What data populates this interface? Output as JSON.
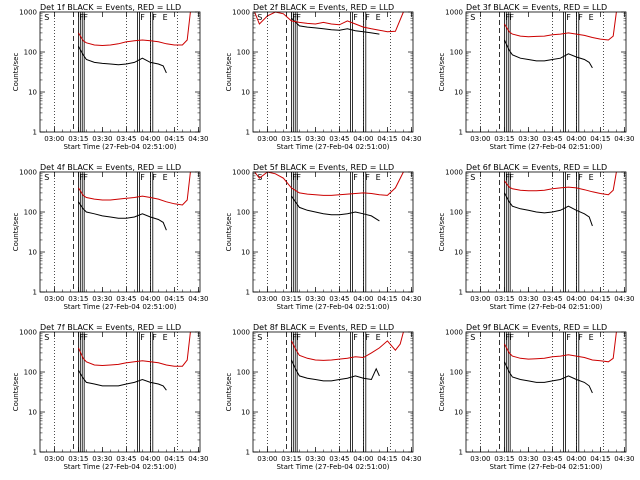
{
  "figure": {
    "ylabel": "Counts/sec",
    "xlabel": "Start Time (27-Feb-04 02:51:00)",
    "x_ticks": [
      "03:00",
      "03:15",
      "03:30",
      "03:45",
      "04:00",
      "04:15",
      "04:30"
    ],
    "y_ticks": [
      "1",
      "10",
      "100",
      "1000"
    ],
    "marker_labels": {
      "S": "S",
      "F": "F",
      "E": "E"
    },
    "colors": {
      "events": "#000000",
      "lld": "#cc0000"
    }
  },
  "chart_data": [
    {
      "type": "line",
      "title": "Det 1f BLACK = Events, RED = LLD",
      "xlabel": "Start Time (27-Feb-04 02:51:00)",
      "ylabel": "Counts/sec",
      "ylog": true,
      "ylim": [
        1,
        1000
      ],
      "series": [
        {
          "name": "Events",
          "color": "#000000",
          "x": [
            "03:15",
            "03:18",
            "03:20",
            "03:25",
            "03:30",
            "03:35",
            "03:40",
            "03:45",
            "03:50",
            "03:55",
            "04:00",
            "04:05",
            "04:08",
            "04:10"
          ],
          "y": [
            140,
            85,
            65,
            55,
            52,
            50,
            48,
            50,
            55,
            70,
            55,
            50,
            45,
            30
          ]
        },
        {
          "name": "LLD",
          "color": "#cc0000",
          "x": [
            "03:15",
            "03:18",
            "03:20",
            "03:25",
            "03:30",
            "03:35",
            "03:40",
            "03:45",
            "03:50",
            "03:55",
            "04:00",
            "04:05",
            "04:10",
            "04:15",
            "04:20",
            "04:23",
            "04:25"
          ],
          "y": [
            300,
            190,
            170,
            150,
            145,
            150,
            160,
            180,
            190,
            200,
            190,
            180,
            160,
            150,
            150,
            200,
            1000
          ]
        }
      ]
    },
    {
      "type": "line",
      "title": "Det 2f BLACK = Events, RED = LLD",
      "xlabel": "Start Time (27-Feb-04 02:51:00)",
      "ylabel": "Counts/sec",
      "ylog": true,
      "ylim": [
        1,
        1000
      ],
      "series": [
        {
          "name": "Events",
          "color": "#000000",
          "x": [
            "03:15",
            "03:20",
            "03:25",
            "03:30",
            "03:35",
            "03:40",
            "03:45",
            "03:50",
            "03:55",
            "04:00",
            "04:05",
            "04:10"
          ],
          "y": [
            700,
            450,
            420,
            400,
            380,
            360,
            350,
            380,
            340,
            320,
            300,
            280
          ]
        },
        {
          "name": "LLD",
          "color": "#cc0000",
          "x": [
            "02:52",
            "02:55",
            "03:00",
            "03:05",
            "03:10",
            "03:15",
            "03:20",
            "03:25",
            "03:30",
            "03:35",
            "03:40",
            "03:45",
            "03:50",
            "03:55",
            "04:00",
            "04:05",
            "04:10",
            "04:15",
            "04:20",
            "04:25"
          ],
          "y": [
            1000,
            500,
            800,
            1000,
            900,
            600,
            550,
            520,
            500,
            550,
            500,
            480,
            600,
            500,
            420,
            380,
            350,
            320,
            330,
            1000
          ]
        }
      ]
    },
    {
      "type": "line",
      "title": "Det 3f BLACK = Events, RED = LLD",
      "xlabel": "Start Time (27-Feb-04 02:51:00)",
      "ylabel": "Counts/sec",
      "ylog": true,
      "ylim": [
        1,
        1000
      ],
      "series": [
        {
          "name": "Events",
          "color": "#000000",
          "x": [
            "03:15",
            "03:18",
            "03:20",
            "03:25",
            "03:30",
            "03:35",
            "03:40",
            "03:45",
            "03:50",
            "03:55",
            "04:00",
            "04:05",
            "04:08",
            "04:10"
          ],
          "y": [
            200,
            110,
            85,
            70,
            65,
            60,
            60,
            65,
            70,
            90,
            75,
            65,
            55,
            40
          ]
        },
        {
          "name": "LLD",
          "color": "#cc0000",
          "x": [
            "03:15",
            "03:18",
            "03:20",
            "03:25",
            "03:30",
            "03:35",
            "03:40",
            "03:45",
            "03:50",
            "03:55",
            "04:00",
            "04:05",
            "04:10",
            "04:15",
            "04:20",
            "04:23",
            "04:25"
          ],
          "y": [
            500,
            320,
            280,
            250,
            240,
            245,
            250,
            270,
            280,
            300,
            280,
            260,
            230,
            210,
            200,
            250,
            1000
          ]
        }
      ]
    },
    {
      "type": "line",
      "title": "Det 4f BLACK = Events, RED = LLD",
      "xlabel": "Start Time (27-Feb-04 02:51:00)",
      "ylabel": "Counts/sec",
      "ylog": true,
      "ylim": [
        1,
        1000
      ],
      "series": [
        {
          "name": "Events",
          "color": "#000000",
          "x": [
            "03:15",
            "03:18",
            "03:20",
            "03:25",
            "03:30",
            "03:35",
            "03:40",
            "03:45",
            "03:50",
            "03:55",
            "04:00",
            "04:05",
            "04:08",
            "04:10"
          ],
          "y": [
            180,
            120,
            100,
            90,
            80,
            75,
            70,
            70,
            75,
            90,
            75,
            65,
            55,
            35
          ]
        },
        {
          "name": "LLD",
          "color": "#cc0000",
          "x": [
            "03:15",
            "03:18",
            "03:20",
            "03:25",
            "03:30",
            "03:35",
            "03:40",
            "03:45",
            "03:50",
            "03:55",
            "04:00",
            "04:05",
            "04:10",
            "04:15",
            "04:20",
            "04:23",
            "04:25"
          ],
          "y": [
            400,
            260,
            230,
            210,
            200,
            200,
            210,
            220,
            230,
            250,
            230,
            210,
            180,
            160,
            150,
            200,
            1000
          ]
        }
      ]
    },
    {
      "type": "line",
      "title": "Det 5f BLACK = Events, RED = LLD",
      "xlabel": "Start Time (27-Feb-04 02:51:00)",
      "ylabel": "Counts/sec",
      "ylog": true,
      "ylim": [
        1,
        1000
      ],
      "series": [
        {
          "name": "Events",
          "color": "#000000",
          "x": [
            "03:15",
            "03:20",
            "03:25",
            "03:30",
            "03:35",
            "03:40",
            "03:45",
            "03:50",
            "03:55",
            "04:00",
            "04:05",
            "04:10"
          ],
          "y": [
            250,
            130,
            110,
            100,
            90,
            85,
            85,
            90,
            100,
            90,
            80,
            60
          ]
        },
        {
          "name": "LLD",
          "color": "#cc0000",
          "x": [
            "02:52",
            "02:55",
            "03:00",
            "03:05",
            "03:10",
            "03:15",
            "03:20",
            "03:25",
            "03:30",
            "03:35",
            "03:40",
            "03:45",
            "03:50",
            "03:55",
            "04:00",
            "04:05",
            "04:10",
            "04:15",
            "04:20",
            "04:25"
          ],
          "y": [
            1000,
            700,
            1000,
            900,
            700,
            400,
            300,
            280,
            270,
            260,
            260,
            270,
            280,
            290,
            300,
            290,
            270,
            260,
            400,
            1000
          ]
        }
      ]
    },
    {
      "type": "line",
      "title": "Det 6f BLACK = Events, RED = LLD",
      "xlabel": "Start Time (27-Feb-04 02:51:00)",
      "ylabel": "Counts/sec",
      "ylog": true,
      "ylim": [
        1,
        1000
      ],
      "series": [
        {
          "name": "Events",
          "color": "#000000",
          "x": [
            "03:15",
            "03:18",
            "03:20",
            "03:25",
            "03:30",
            "03:35",
            "03:40",
            "03:45",
            "03:50",
            "03:55",
            "04:00",
            "04:05",
            "04:08",
            "04:10"
          ],
          "y": [
            300,
            180,
            140,
            120,
            110,
            100,
            95,
            100,
            110,
            140,
            110,
            90,
            75,
            45
          ]
        },
        {
          "name": "LLD",
          "color": "#cc0000",
          "x": [
            "03:15",
            "03:18",
            "03:20",
            "03:25",
            "03:30",
            "03:35",
            "03:40",
            "03:45",
            "03:50",
            "03:55",
            "04:00",
            "04:05",
            "04:10",
            "04:15",
            "04:20",
            "04:23",
            "04:25"
          ],
          "y": [
            600,
            420,
            380,
            350,
            340,
            340,
            350,
            380,
            400,
            420,
            400,
            360,
            320,
            290,
            270,
            350,
            1000
          ]
        }
      ]
    },
    {
      "type": "line",
      "title": "Det 7f BLACK = Events, RED = LLD",
      "xlabel": "Start Time (27-Feb-04 02:51:00)",
      "ylabel": "Counts/sec",
      "ylog": true,
      "ylim": [
        1,
        1000
      ],
      "series": [
        {
          "name": "Events",
          "color": "#000000",
          "x": [
            "03:15",
            "03:18",
            "03:20",
            "03:25",
            "03:30",
            "03:35",
            "03:40",
            "03:45",
            "03:50",
            "03:55",
            "04:00",
            "04:05",
            "04:08",
            "04:10"
          ],
          "y": [
            110,
            70,
            55,
            50,
            45,
            45,
            45,
            50,
            55,
            65,
            55,
            50,
            45,
            35
          ]
        },
        {
          "name": "LLD",
          "color": "#cc0000",
          "x": [
            "03:15",
            "03:18",
            "03:20",
            "03:25",
            "03:30",
            "03:35",
            "03:40",
            "03:45",
            "03:50",
            "03:55",
            "04:00",
            "04:05",
            "04:10",
            "04:15",
            "04:20",
            "04:23",
            "04:25"
          ],
          "y": [
            400,
            220,
            180,
            150,
            145,
            150,
            155,
            170,
            180,
            190,
            180,
            170,
            150,
            140,
            140,
            200,
            1000
          ]
        }
      ]
    },
    {
      "type": "line",
      "title": "Det 8f BLACK = Events, RED = LLD",
      "xlabel": "Start Time (27-Feb-04 02:51:00)",
      "ylabel": "Counts/sec",
      "ylog": true,
      "ylim": [
        1,
        1000
      ],
      "series": [
        {
          "name": "Events",
          "color": "#000000",
          "x": [
            "03:15",
            "03:18",
            "03:20",
            "03:25",
            "03:30",
            "03:35",
            "03:40",
            "03:45",
            "03:50",
            "03:55",
            "04:00",
            "04:05",
            "04:08",
            "04:10"
          ],
          "y": [
            200,
            110,
            80,
            70,
            65,
            60,
            60,
            65,
            70,
            80,
            70,
            65,
            120,
            80
          ]
        },
        {
          "name": "LLD",
          "color": "#cc0000",
          "x": [
            "03:15",
            "03:18",
            "03:20",
            "03:25",
            "03:30",
            "03:35",
            "03:40",
            "03:45",
            "03:50",
            "03:55",
            "04:00",
            "04:05",
            "04:10",
            "04:15",
            "04:20",
            "04:23",
            "04:25"
          ],
          "y": [
            600,
            350,
            260,
            220,
            200,
            195,
            200,
            210,
            220,
            240,
            230,
            300,
            400,
            600,
            350,
            500,
            1000
          ]
        }
      ]
    },
    {
      "type": "line",
      "title": "Det 9f BLACK = Events, RED = LLD",
      "xlabel": "Start Time (27-Feb-04 02:51:00)",
      "ylabel": "Counts/sec",
      "ylog": true,
      "ylim": [
        1,
        1000
      ],
      "series": [
        {
          "name": "Events",
          "color": "#000000",
          "x": [
            "03:15",
            "03:18",
            "03:20",
            "03:25",
            "03:30",
            "03:35",
            "03:40",
            "03:45",
            "03:50",
            "03:55",
            "04:00",
            "04:05",
            "04:08",
            "04:10"
          ],
          "y": [
            180,
            100,
            75,
            65,
            60,
            55,
            55,
            60,
            65,
            80,
            65,
            55,
            45,
            30
          ]
        },
        {
          "name": "LLD",
          "color": "#cc0000",
          "x": [
            "03:15",
            "03:18",
            "03:20",
            "03:25",
            "03:30",
            "03:35",
            "03:40",
            "03:45",
            "03:50",
            "03:55",
            "04:00",
            "04:05",
            "04:10",
            "04:15",
            "04:20",
            "04:23",
            "04:25"
          ],
          "y": [
            500,
            300,
            250,
            220,
            210,
            215,
            220,
            240,
            250,
            270,
            250,
            230,
            200,
            190,
            180,
            220,
            1000
          ]
        }
      ]
    }
  ]
}
